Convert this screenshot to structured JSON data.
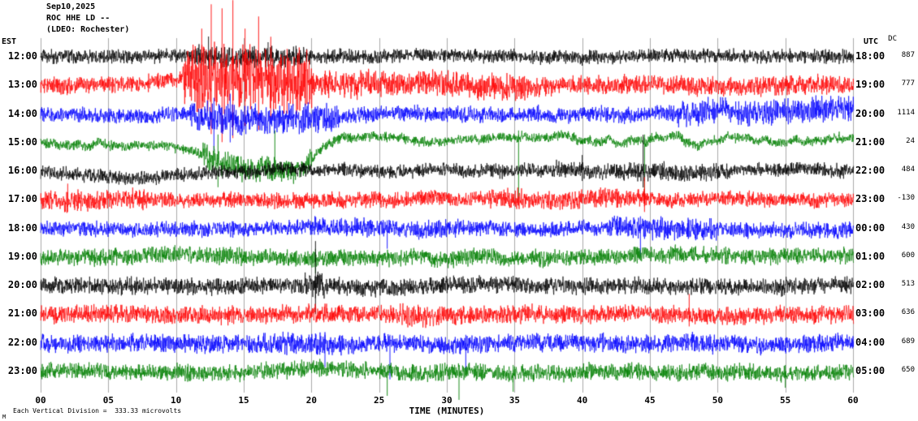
{
  "header": {
    "date": "Sep10,2025",
    "station": "ROC HHE LD --",
    "network": "(LDEO: Rochester)"
  },
  "axes": {
    "left_label": "EST",
    "right_label": "UTC",
    "dc_label": "DC",
    "xlabel": "TIME (MINUTES)",
    "x_ticks": [
      "00",
      "05",
      "10",
      "15",
      "20",
      "25",
      "30",
      "35",
      "40",
      "45",
      "50",
      "55",
      "60"
    ]
  },
  "footer": {
    "scale_note": "Each Vertical Division =  333.33 microvolts",
    "corner_mark": "M"
  },
  "chart_data": {
    "type": "line",
    "title": "ROC HHE LD -- (LDEO: Rochester) Sep10,2025",
    "xlabel": "TIME (MINUTES)",
    "x_range_minutes": [
      0,
      60
    ],
    "grid": "vertical gridlines every 5 minutes",
    "legend_position": "none",
    "trace_color_cycle": [
      "#000000",
      "#ff0000",
      "#0000ff",
      "#008000"
    ],
    "rows": [
      {
        "est": "12:00",
        "utc": "18:00",
        "dc": 887,
        "color": "#000000",
        "amp": 10,
        "wander": 2,
        "bursts": [
          {
            "start": 11,
            "end": 20,
            "factor": 1.5
          }
        ],
        "spikes": [
          {
            "min": 12.4,
            "up": 25,
            "down": 15
          },
          {
            "min": 16.8,
            "up": 18,
            "down": 12
          }
        ]
      },
      {
        "est": "13:00",
        "utc": "19:00",
        "dc": 777,
        "color": "#ff0000",
        "amp": 12,
        "wander": 3,
        "bursts": [
          {
            "start": 10.5,
            "end": 20,
            "factor": 4
          },
          {
            "start": 20,
            "end": 36,
            "factor": 1.6
          },
          {
            "start": 36,
            "end": 60,
            "factor": 1.15
          }
        ],
        "drifts": [
          {
            "center": 14,
            "sigma": 3,
            "amp": -10
          }
        ],
        "spikes": [
          {
            "min": 11.9,
            "up": 70,
            "down": 45
          },
          {
            "min": 12.6,
            "up": 100,
            "down": 60
          },
          {
            "min": 13.4,
            "up": 95,
            "down": 70
          },
          {
            "min": 14.2,
            "up": 105,
            "down": 65
          },
          {
            "min": 15.1,
            "up": 70,
            "down": 50
          },
          {
            "min": 16.1,
            "up": 85,
            "down": 55
          },
          {
            "min": 17.0,
            "up": 60,
            "down": 40
          },
          {
            "min": 18.2,
            "up": 45,
            "down": 35
          },
          {
            "min": 19.0,
            "up": 40,
            "down": 30
          }
        ]
      },
      {
        "est": "14:00",
        "utc": "20:00",
        "dc": 1114,
        "color": "#0000ff",
        "amp": 11,
        "wander": 5,
        "bursts": [
          {
            "start": 11,
            "end": 22,
            "factor": 2.0
          },
          {
            "start": 47,
            "end": 60,
            "factor": 1.7
          }
        ],
        "drifts": [
          {
            "center": 17,
            "sigma": 4,
            "amp": 14
          },
          {
            "center": 56,
            "sigma": 6,
            "amp": -8
          }
        ],
        "spikes": [
          {
            "min": 12.8,
            "down": 45,
            "up": 20
          },
          {
            "min": 14.0,
            "down": 35,
            "up": 25
          }
        ]
      },
      {
        "est": "15:00",
        "utc": "21:00",
        "dc": 24,
        "color": "#008000",
        "amp": 7,
        "wander": 8,
        "bursts": [
          {
            "start": 12,
            "end": 20,
            "factor": 2.5
          }
        ],
        "drifts": [
          {
            "center": 15.5,
            "sigma": 2.8,
            "amp": 35
          },
          {
            "center": 18.8,
            "sigma": 1.2,
            "amp": 25
          }
        ],
        "spikes": [
          {
            "min": 13.1,
            "down": 55,
            "up": 10
          },
          {
            "min": 17.3,
            "down": 45,
            "up": 15
          },
          {
            "min": 35.3,
            "down": 70,
            "up": 15
          },
          {
            "min": 44.6,
            "down": 75,
            "up": 10
          }
        ]
      },
      {
        "est": "16:00",
        "utc": "22:00",
        "dc": 484,
        "color": "#000000",
        "amp": 10,
        "wander": 4,
        "bursts": [
          {
            "start": 38,
            "end": 50,
            "factor": 1.3
          }
        ],
        "drifts": [
          {
            "center": 8,
            "sigma": 5,
            "amp": 6
          }
        ],
        "spikes": [
          {
            "min": 44.5,
            "up": 45,
            "down": 20
          },
          {
            "min": 40.0,
            "up": 20,
            "down": 12
          }
        ]
      },
      {
        "est": "17:00",
        "utc": "23:00",
        "dc": -130,
        "color": "#ff0000",
        "amp": 11,
        "wander": 3,
        "bursts": [
          {
            "start": 0,
            "end": 8,
            "factor": 1.3
          },
          {
            "start": 33,
            "end": 46,
            "factor": 1.25
          }
        ],
        "spikes": [
          {
            "min": 2.0,
            "up": 20,
            "down": 15
          },
          {
            "min": 44.6,
            "up": 28,
            "down": 15
          }
        ]
      },
      {
        "est": "18:00",
        "utc": "00:00",
        "dc": 430,
        "color": "#0000ff",
        "amp": 11,
        "wander": 3,
        "bursts": [
          {
            "start": 20,
            "end": 31,
            "factor": 1.25
          },
          {
            "start": 42,
            "end": 50,
            "factor": 1.4
          }
        ],
        "spikes": [
          {
            "min": 44.3,
            "down": 35,
            "up": 15
          },
          {
            "min": 25.6,
            "down": 25,
            "up": 10
          }
        ]
      },
      {
        "est": "19:00",
        "utc": "01:00",
        "dc": 600,
        "color": "#008000",
        "amp": 12,
        "wander": 3,
        "spikes": [
          {
            "min": 20.3,
            "down": 20,
            "up": 10
          }
        ]
      },
      {
        "est": "20:00",
        "utc": "02:00",
        "dc": 513,
        "color": "#000000",
        "amp": 12,
        "wander": 3,
        "bursts": [
          {
            "start": 19.5,
            "end": 21,
            "factor": 1.6
          }
        ],
        "spikes": [
          {
            "min": 20.3,
            "up": 55,
            "down": 35
          }
        ]
      },
      {
        "est": "21:00",
        "utc": "03:00",
        "dc": 636,
        "color": "#ff0000",
        "amp": 13,
        "wander": 2,
        "bursts": [
          {
            "start": 26.5,
            "end": 29,
            "factor": 1.3
          }
        ],
        "spikes": [
          {
            "min": 47.9,
            "up": 25,
            "down": 15
          }
        ]
      },
      {
        "est": "22:00",
        "utc": "04:00",
        "dc": 689,
        "color": "#0000ff",
        "amp": 13,
        "wander": 3,
        "bursts": [
          {
            "start": 16,
            "end": 23,
            "factor": 1.2
          }
        ],
        "spikes": [
          {
            "min": 25.8,
            "down": 45,
            "up": 10
          },
          {
            "min": 31.4,
            "down": 35,
            "up": 10
          },
          {
            "min": 21.0,
            "down": 30,
            "up": 10
          }
        ]
      },
      {
        "est": "23:00",
        "utc": "05:00",
        "dc": 650,
        "color": "#008000",
        "amp": 12,
        "wander": 3,
        "spikes": [
          {
            "min": 25.6,
            "down": 30,
            "up": 8
          },
          {
            "min": 30.9,
            "down": 35,
            "up": 8
          },
          {
            "min": 34.9,
            "down": 25,
            "up": 8
          },
          {
            "min": 55.0,
            "down": 20,
            "up": 8
          }
        ]
      }
    ]
  }
}
